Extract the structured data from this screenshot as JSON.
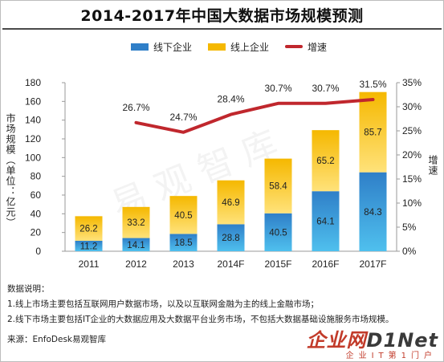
{
  "title": "2014-2017年中国大数据市场规模预测",
  "legend": {
    "offline": "线下企业",
    "online": "线上企业",
    "growth": "增速"
  },
  "axes": {
    "left_title": "市场规模（单位：亿元）",
    "right_title": "增速"
  },
  "colors": {
    "offline": "#2f7fc8",
    "online": "#f5b800",
    "growth": "#c0272d"
  },
  "chart_data": {
    "type": "bar",
    "stacked": true,
    "categories": [
      "2011",
      "2012",
      "2013",
      "2014F",
      "2015F",
      "2016F",
      "2017F"
    ],
    "series": [
      {
        "name": "线下企业",
        "values": [
          11.2,
          14.1,
          18.5,
          28.8,
          40.5,
          64.1,
          84.3
        ]
      },
      {
        "name": "线上企业",
        "values": [
          26.2,
          33.2,
          40.5,
          46.9,
          58.4,
          65.2,
          85.7
        ]
      }
    ],
    "line_series": {
      "name": "增速",
      "axis": "right",
      "values": [
        null,
        26.7,
        24.7,
        28.4,
        30.7,
        30.7,
        31.5
      ],
      "labels": [
        "",
        "26.7%",
        "24.7%",
        "28.4%",
        "30.7%",
        "30.7%",
        "31.5%"
      ]
    },
    "ylim_left": [
      0,
      180
    ],
    "yticks_left": [
      "0",
      "20",
      "40",
      "60",
      "80",
      "100",
      "120",
      "140",
      "160",
      "180"
    ],
    "ylim_right": [
      0,
      35
    ],
    "yticks_right": [
      "0%",
      "5%",
      "10%",
      "15%",
      "20%",
      "25%",
      "30%",
      "35%"
    ],
    "grid": false,
    "legend_position": "top"
  },
  "notes": {
    "heading": "数据说明：",
    "line1": "1.线上市场主要包括互联网用户数据市场，以及以互联网金融为主的线上金融市场；",
    "line2": "2.线下市场主要包括IT企业的大数据应用及大数据平台业务市场，不包括大数据基础设施服务市场规模。"
  },
  "source": "来源：EnfoDesk易观智库",
  "watermark": "易观智库",
  "brand": {
    "part1": "企业网",
    "part2": "D1Net",
    "sub": "企业IT第1门户"
  }
}
